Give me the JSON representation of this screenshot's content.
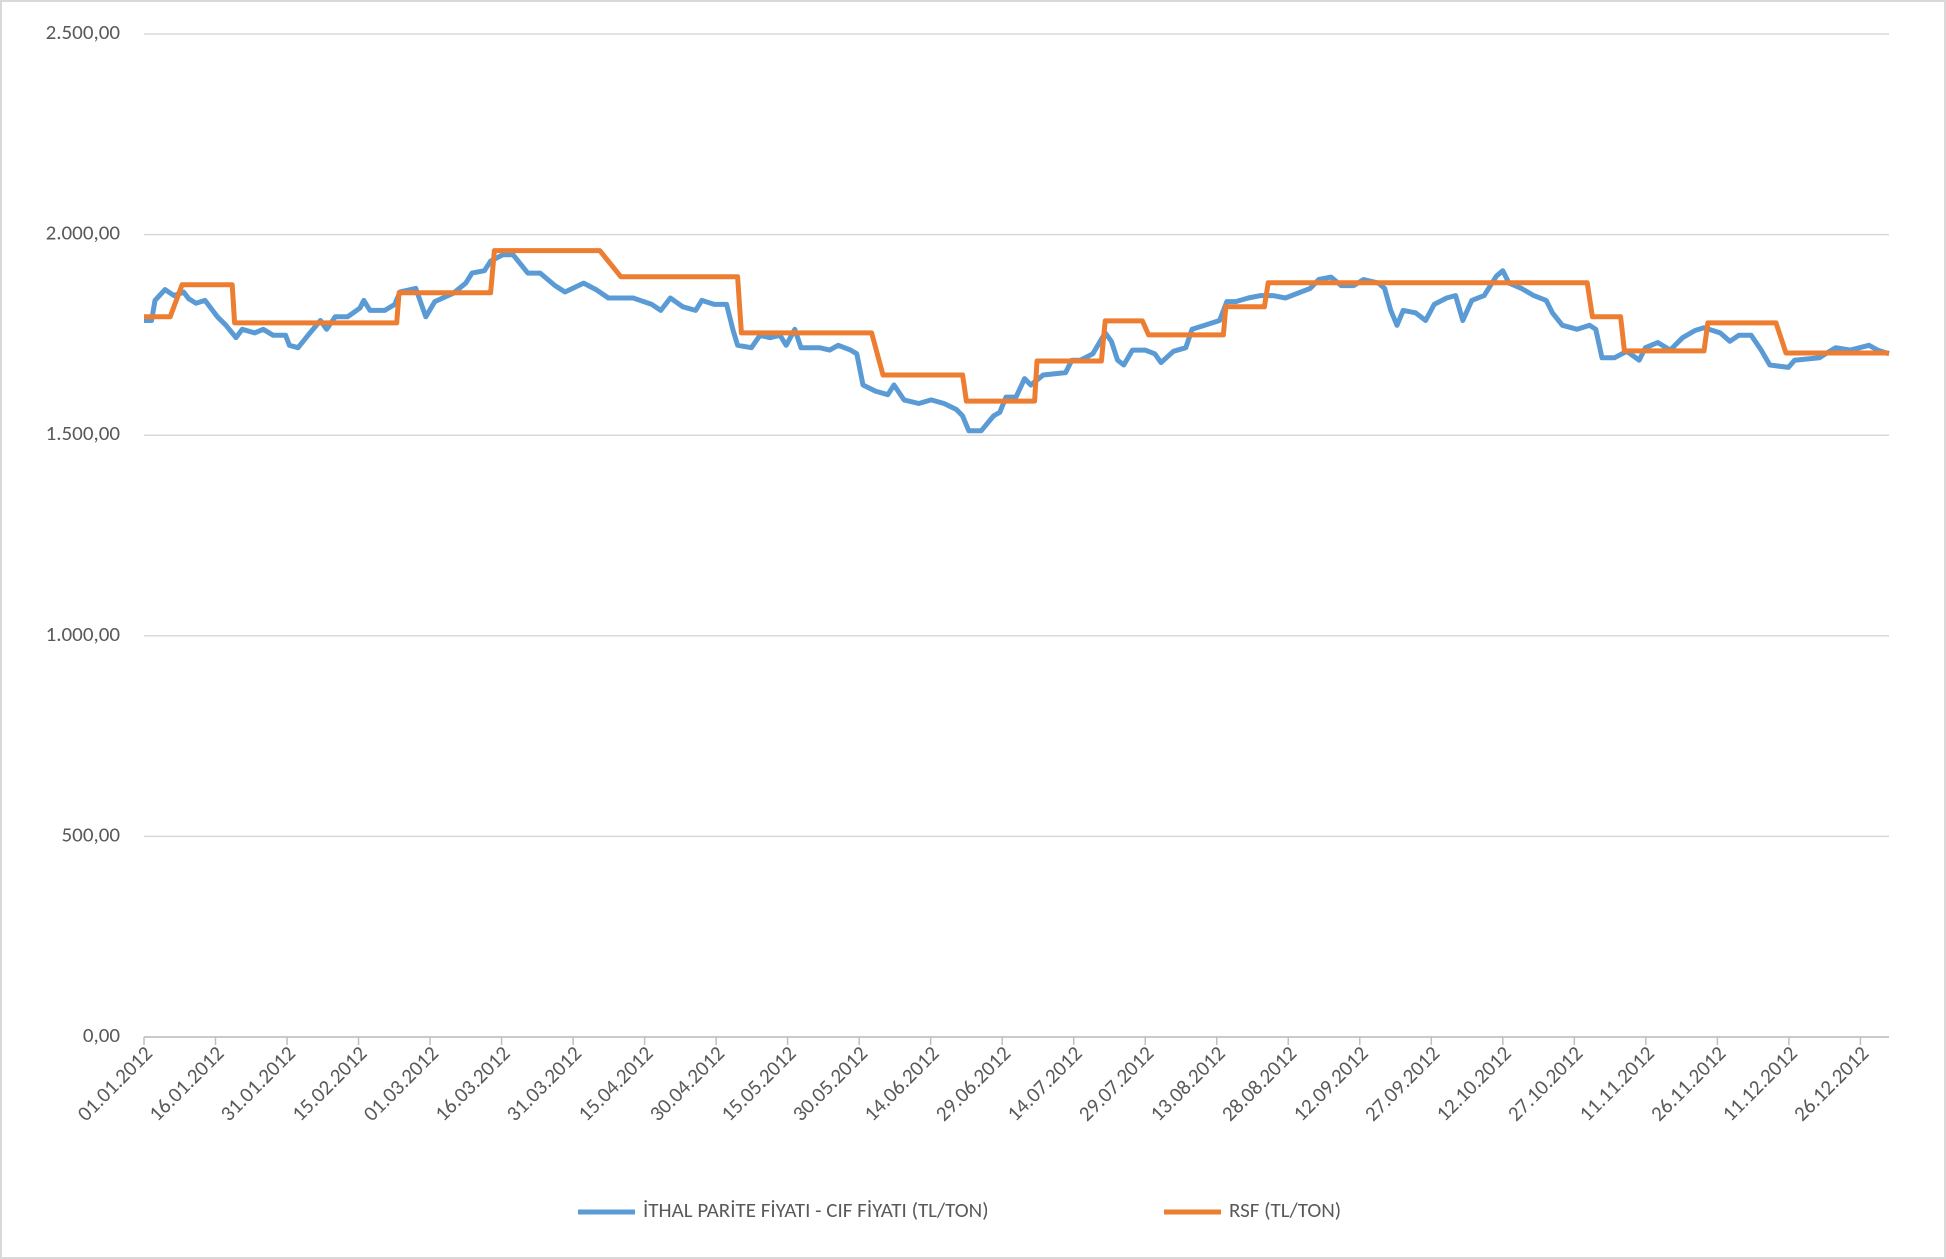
{
  "chart_data": {
    "type": "line",
    "xlim": [
      0,
      366
    ],
    "xticks": [
      {
        "value": 0,
        "label": "01.01.2012"
      },
      {
        "value": 15,
        "label": "16.01.2012"
      },
      {
        "value": 30,
        "label": "31.01.2012"
      },
      {
        "value": 45,
        "label": "15.02.2012"
      },
      {
        "value": 60,
        "label": "01.03.2012"
      },
      {
        "value": 75,
        "label": "16.03.2012"
      },
      {
        "value": 90,
        "label": "31.03.2012"
      },
      {
        "value": 105,
        "label": "15.04.2012"
      },
      {
        "value": 120,
        "label": "30.04.2012"
      },
      {
        "value": 135,
        "label": "15.05.2012"
      },
      {
        "value": 150,
        "label": "30.05.2012"
      },
      {
        "value": 165,
        "label": "14.06.2012"
      },
      {
        "value": 180,
        "label": "29.06.2012"
      },
      {
        "value": 195,
        "label": "14.07.2012"
      },
      {
        "value": 210,
        "label": "29.07.2012"
      },
      {
        "value": 225,
        "label": "13.08.2012"
      },
      {
        "value": 240,
        "label": "28.08.2012"
      },
      {
        "value": 255,
        "label": "12.09.2012"
      },
      {
        "value": 270,
        "label": "27.09.2012"
      },
      {
        "value": 285,
        "label": "12.10.2012"
      },
      {
        "value": 300,
        "label": "27.10.2012"
      },
      {
        "value": 315,
        "label": "11.11.2012"
      },
      {
        "value": 330,
        "label": "26.11.2012"
      },
      {
        "value": 345,
        "label": "11.12.2012"
      },
      {
        "value": 360,
        "label": "26.12.2012"
      }
    ],
    "ylim": [
      0,
      2500
    ],
    "yticks": [
      {
        "value": 0,
        "label": "0,00"
      },
      {
        "value": 500,
        "label": "500,00"
      },
      {
        "value": 1000,
        "label": "1.000,00"
      },
      {
        "value": 1500,
        "label": "1.500,00"
      },
      {
        "value": 2000,
        "label": "2.000,00"
      },
      {
        "value": 2500,
        "label": "2.500,00"
      }
    ],
    "grid": true,
    "legend": "bottom",
    "series": [
      {
        "name": "İTHAL PARİTE FİYATI - CIF FİYATI (TL/TON)",
        "color": "#5b9bd5",
        "x": [
          0,
          1.6,
          2.3,
          4.4,
          6.3,
          8.3,
          9.4,
          10.9,
          12.8,
          15.4,
          17.2,
          19.3,
          20.6,
          23.2,
          25,
          27.1,
          29.7,
          30.5,
          32.3,
          34.4,
          37,
          38.3,
          40.1,
          42.7,
          45.3,
          46.1,
          47.4,
          50.5,
          52.6,
          53.7,
          57,
          59.1,
          61,
          64.9,
          67.5,
          68.8,
          71.4,
          72.7,
          75.3,
          77.4,
          80.5,
          83.1,
          86.2,
          88.3,
          92.2,
          94.8,
          97.4,
          102.6,
          106.5,
          108.4,
          110.4,
          113,
          115.7,
          117,
          119.6,
          122.2,
          123.5,
          124.5,
          127.4,
          129.2,
          131.3,
          133.4,
          134.7,
          136.5,
          137.8,
          141.7,
          143.8,
          145.6,
          148.2,
          149.5,
          150.8,
          153.4,
          156,
          157.3,
          159.4,
          162.5,
          165.1,
          167.8,
          170.4,
          171.7,
          173,
          175.6,
          178.2,
          179.5,
          180.8,
          182.9,
          184.7,
          186,
          188.6,
          193.3,
          194.6,
          196.4,
          199,
          201.6,
          202.9,
          204.2,
          205.5,
          207.3,
          210,
          212,
          213.3,
          215.9,
          218.5,
          219.8,
          222.5,
          225.6,
          227.1,
          229,
          231.6,
          234.2,
          236.8,
          239.4,
          242,
          244.6,
          246.4,
          249,
          251.1,
          253.7,
          255.8,
          258.9,
          260.2,
          261.5,
          262.8,
          264.1,
          266.7,
          268.8,
          270.6,
          273.2,
          275.1,
          276.6,
          278.5,
          281.1,
          282.4,
          283.7,
          285,
          286.3,
          288.9,
          291.5,
          294.1,
          295.4,
          297.5,
          300.6,
          303.2,
          304.5,
          305.8,
          308.4,
          311,
          313.6,
          314.9,
          317.5,
          320.1,
          322.7,
          325.3,
          327.2,
          330.6,
          332.6,
          334.5,
          337.1,
          339.2,
          341,
          344.9,
          346.2,
          351.4,
          352.7,
          354.8,
          357.9,
          361.8,
          363.6,
          366
        ],
        "values": [
          1786,
          1786,
          1836,
          1863,
          1848,
          1857,
          1840,
          1829,
          1836,
          1795,
          1774,
          1743,
          1764,
          1755,
          1764,
          1749,
          1749,
          1724,
          1718,
          1749,
          1786,
          1764,
          1795,
          1795,
          1817,
          1836,
          1811,
          1811,
          1826,
          1857,
          1866,
          1795,
          1833,
          1854,
          1879,
          1904,
          1910,
          1934,
          1950,
          1950,
          1904,
          1904,
          1873,
          1857,
          1879,
          1863,
          1842,
          1842,
          1826,
          1811,
          1842,
          1820,
          1811,
          1836,
          1826,
          1826,
          1764,
          1724,
          1718,
          1749,
          1743,
          1749,
          1724,
          1764,
          1718,
          1718,
          1712,
          1724,
          1712,
          1703,
          1625,
          1610,
          1601,
          1625,
          1588,
          1579,
          1588,
          1579,
          1564,
          1548,
          1511,
          1511,
          1548,
          1557,
          1595,
          1595,
          1641,
          1625,
          1650,
          1656,
          1687,
          1687,
          1703,
          1755,
          1734,
          1687,
          1675,
          1712,
          1712,
          1703,
          1681,
          1709,
          1718,
          1764,
          1774,
          1786,
          1833,
          1833,
          1842,
          1848,
          1848,
          1842,
          1854,
          1866,
          1888,
          1894,
          1873,
          1873,
          1888,
          1879,
          1866,
          1811,
          1774,
          1811,
          1805,
          1786,
          1826,
          1842,
          1848,
          1786,
          1836,
          1848,
          1873,
          1897,
          1910,
          1879,
          1866,
          1848,
          1836,
          1805,
          1774,
          1764,
          1774,
          1764,
          1693,
          1693,
          1709,
          1687,
          1718,
          1731,
          1712,
          1743,
          1761,
          1768,
          1755,
          1734,
          1749,
          1749,
          1712,
          1675,
          1669,
          1687,
          1693,
          1703,
          1718,
          1712,
          1724,
          1712,
          1703
        ]
      },
      {
        "name": "RSF (TL/TON)",
        "color": "#ed7d31",
        "x": [
          0,
          5.5,
          8,
          18.5,
          19,
          53,
          53.5,
          72.7,
          73.5,
          95.6,
          100,
          124.5,
          125.3,
          152.6,
          155,
          171.7,
          172.5,
          186.8,
          187.3,
          200.8,
          201.6,
          209.4,
          210.7,
          226.4,
          226.9,
          235,
          235.8,
          302.7,
          303.8,
          309.7,
          310.5,
          327.2,
          328,
          342.3,
          344.4,
          366
        ],
        "values": [
          1795,
          1795,
          1875,
          1875,
          1780,
          1780,
          1855,
          1855,
          1960,
          1960,
          1895,
          1895,
          1755,
          1755,
          1650,
          1650,
          1585,
          1585,
          1685,
          1685,
          1785,
          1785,
          1750,
          1750,
          1820,
          1820,
          1880,
          1880,
          1795,
          1795,
          1710,
          1710,
          1780,
          1780,
          1705,
          1705
        ]
      }
    ]
  }
}
